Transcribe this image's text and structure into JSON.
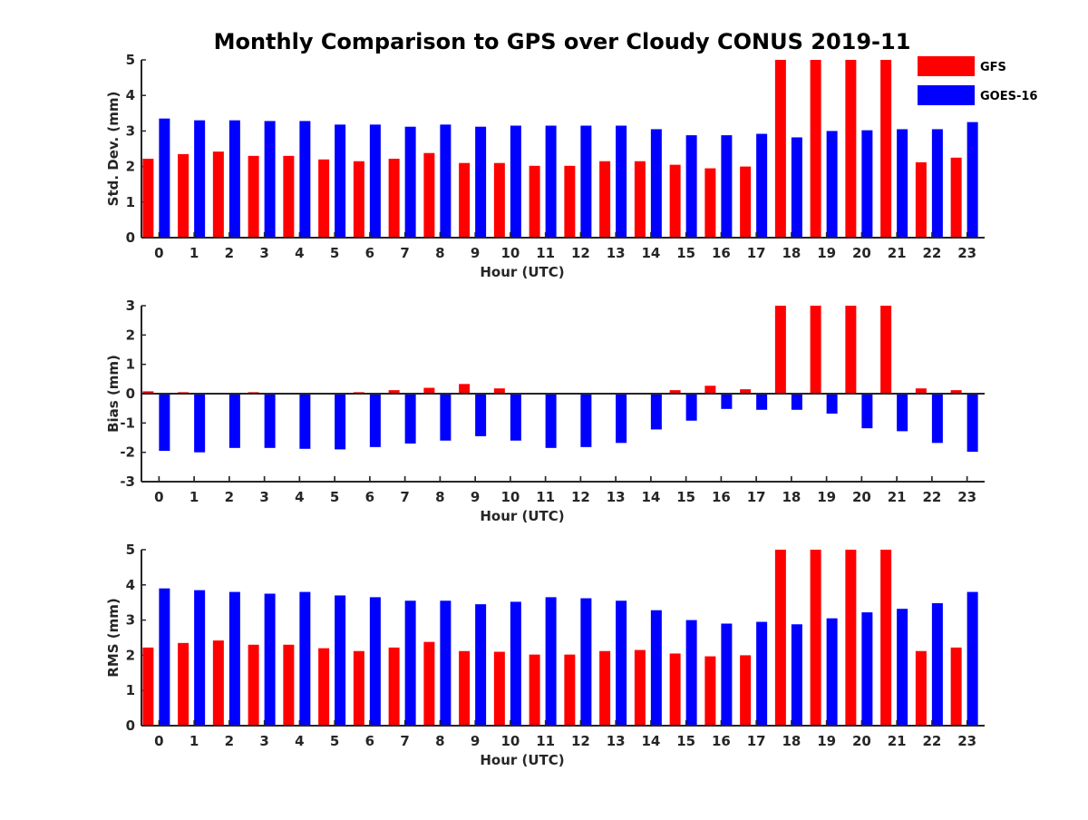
{
  "figure_title": "Monthly Comparison to GPS over Cloudy CONUS 2019-11",
  "legend": [
    {
      "label": "GFS",
      "color": "#ff0000"
    },
    {
      "label": "GOES-16",
      "color": "#0000ff"
    }
  ],
  "chart_data": [
    {
      "type": "bar",
      "title": "Monthly Comparison to GPS over Cloudy CONUS 2019-11",
      "xlabel": "Hour (UTC)",
      "ylabel": "Std. Dev. (mm)",
      "ylim": [
        0,
        5
      ],
      "yticks": [
        0,
        1,
        2,
        3,
        4,
        5
      ],
      "categories": [
        "0",
        "1",
        "2",
        "3",
        "4",
        "5",
        "6",
        "7",
        "8",
        "9",
        "10",
        "11",
        "12",
        "13",
        "14",
        "15",
        "16",
        "17",
        "18",
        "19",
        "20",
        "21",
        "22",
        "23"
      ],
      "series": [
        {
          "name": "GFS",
          "color": "#ff0000",
          "values": [
            2.22,
            2.35,
            2.42,
            2.3,
            2.3,
            2.2,
            2.15,
            2.22,
            2.38,
            2.1,
            2.1,
            2.02,
            2.02,
            2.15,
            2.15,
            2.05,
            1.95,
            2.0,
            5,
            5,
            5,
            5,
            2.12,
            2.25
          ]
        },
        {
          "name": "GOES-16",
          "color": "#0000ff",
          "values": [
            3.35,
            3.3,
            3.3,
            3.28,
            3.28,
            3.18,
            3.18,
            3.12,
            3.18,
            3.12,
            3.15,
            3.15,
            3.15,
            3.15,
            3.05,
            2.88,
            2.88,
            2.92,
            2.82,
            3.0,
            3.02,
            3.05,
            3.05,
            3.25
          ]
        }
      ]
    },
    {
      "type": "bar",
      "xlabel": "Hour (UTC)",
      "ylabel": "Bias (mm)",
      "ylim": [
        -3,
        3
      ],
      "yticks": [
        -3,
        -2,
        -1,
        0,
        1,
        2,
        3
      ],
      "categories": [
        "0",
        "1",
        "2",
        "3",
        "4",
        "5",
        "6",
        "7",
        "8",
        "9",
        "10",
        "11",
        "12",
        "13",
        "14",
        "15",
        "16",
        "17",
        "18",
        "19",
        "20",
        "21",
        "22",
        "23"
      ],
      "series": [
        {
          "name": "GFS",
          "color": "#ff0000",
          "values": [
            0.08,
            0.05,
            0.02,
            0.05,
            0.02,
            0.01,
            0.05,
            0.12,
            0.2,
            0.33,
            0.18,
            0.0,
            0.0,
            0.0,
            0.03,
            0.12,
            0.27,
            0.15,
            3,
            3,
            3,
            3,
            0.18,
            0.12
          ]
        },
        {
          "name": "GOES-16",
          "color": "#0000ff",
          "values": [
            -1.95,
            -2.0,
            -1.85,
            -1.85,
            -1.88,
            -1.9,
            -1.82,
            -1.7,
            -1.6,
            -1.45,
            -1.6,
            -1.85,
            -1.82,
            -1.68,
            -1.22,
            -0.92,
            -0.52,
            -0.55,
            -0.55,
            -0.68,
            -1.18,
            -1.28,
            -1.68,
            -1.98
          ]
        }
      ]
    },
    {
      "type": "bar",
      "xlabel": "Hour (UTC)",
      "ylabel": "RMS (mm)",
      "ylim": [
        0,
        5
      ],
      "yticks": [
        0,
        1,
        2,
        3,
        4,
        5
      ],
      "categories": [
        "0",
        "1",
        "2",
        "3",
        "4",
        "5",
        "6",
        "7",
        "8",
        "9",
        "10",
        "11",
        "12",
        "13",
        "14",
        "15",
        "16",
        "17",
        "18",
        "19",
        "20",
        "21",
        "22",
        "23"
      ],
      "series": [
        {
          "name": "GFS",
          "color": "#ff0000",
          "values": [
            2.22,
            2.35,
            2.42,
            2.3,
            2.3,
            2.2,
            2.12,
            2.22,
            2.38,
            2.12,
            2.1,
            2.02,
            2.02,
            2.12,
            2.15,
            2.05,
            1.97,
            2.0,
            5,
            5,
            5,
            5,
            2.12,
            2.22
          ]
        },
        {
          "name": "GOES-16",
          "color": "#0000ff",
          "values": [
            3.9,
            3.85,
            3.8,
            3.75,
            3.8,
            3.7,
            3.65,
            3.55,
            3.55,
            3.45,
            3.52,
            3.65,
            3.62,
            3.55,
            3.28,
            3.0,
            2.9,
            2.95,
            2.88,
            3.05,
            3.22,
            3.32,
            3.48,
            3.8
          ]
        }
      ]
    }
  ]
}
